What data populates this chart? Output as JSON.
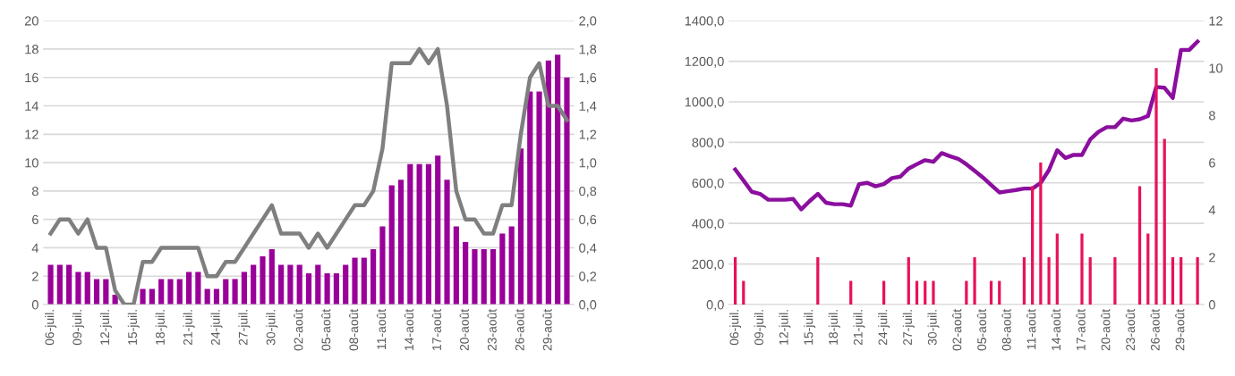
{
  "chart_data": [
    {
      "type": "bar",
      "categories": [
        "06-juil.",
        null,
        null,
        "09-juil.",
        null,
        null,
        "12-juil.",
        null,
        null,
        "15-juil.",
        null,
        null,
        "18-juil.",
        null,
        null,
        "21-juil.",
        null,
        null,
        "24-juil.",
        null,
        null,
        "27-juil.",
        null,
        null,
        "30-juil.",
        null,
        null,
        "02-août",
        null,
        null,
        "05-août",
        null,
        null,
        "08-août",
        null,
        null,
        "11-août",
        null,
        null,
        "14-août",
        null,
        null,
        "17-août",
        null,
        null,
        "20-août",
        null,
        null,
        "23-août",
        null,
        null,
        "26-août",
        null,
        null,
        "29-août",
        null,
        null
      ],
      "series": [
        {
          "color": "#990099",
          "values": [
            2.8,
            2.8,
            2.8,
            2.3,
            2.3,
            1.8,
            1.8,
            0.7,
            0,
            0,
            1.1,
            1.1,
            1.8,
            1.8,
            1.8,
            2.3,
            2.3,
            1.1,
            1.1,
            1.8,
            1.8,
            2.3,
            2.8,
            3.4,
            3.9,
            2.8,
            2.8,
            2.8,
            2.2,
            2.8,
            2.2,
            2.2,
            2.8,
            3.3,
            3.3,
            3.9,
            5.5,
            8.4,
            8.8,
            9.9,
            9.9,
            9.9,
            10.5,
            8.8,
            5.5,
            4.4,
            3.9,
            3.9,
            3.9,
            5.0,
            5.5,
            11.0,
            15.0,
            15.0,
            17.2,
            17.6,
            16.0
          ]
        },
        {
          "type": "line",
          "axis": "y2",
          "color": "#7f7f7f",
          "values": [
            0.5,
            0.6,
            0.6,
            0.5,
            0.6,
            0.4,
            0.4,
            0.1,
            0,
            0,
            0.3,
            0.3,
            0.4,
            0.4,
            0.4,
            0.4,
            0.4,
            0.2,
            0.2,
            0.3,
            0.3,
            0.4,
            0.5,
            0.6,
            0.7,
            0.5,
            0.5,
            0.5,
            0.4,
            0.5,
            0.4,
            0.5,
            0.6,
            0.7,
            0.7,
            0.8,
            1.1,
            1.7,
            1.7,
            1.7,
            1.8,
            1.7,
            1.8,
            1.4,
            0.8,
            0.6,
            0.6,
            0.5,
            0.5,
            0.7,
            0.7,
            1.2,
            1.6,
            1.7,
            1.4,
            1.4,
            1.3
          ]
        }
      ],
      "ylim": [
        0,
        20
      ],
      "yticks": [
        0,
        2,
        4,
        6,
        8,
        10,
        12,
        14,
        16,
        18,
        20
      ],
      "y2lim": [
        0,
        2
      ],
      "y2ticks": [
        {
          "value": 0,
          "label": "0,0"
        },
        {
          "value": 0.2,
          "label": "0,2"
        },
        {
          "value": 0.4,
          "label": "0,4"
        },
        {
          "value": 0.6,
          "label": "0,6"
        },
        {
          "value": 0.8,
          "label": "0,8"
        },
        {
          "value": 1.0,
          "label": "1,0"
        },
        {
          "value": 1.2,
          "label": "1,2"
        },
        {
          "value": 1.4,
          "label": "1,4"
        },
        {
          "value": 1.6,
          "label": "1,6"
        },
        {
          "value": 1.8,
          "label": "1,8"
        },
        {
          "value": 2.0,
          "label": "2,0"
        }
      ],
      "grid": "y"
    },
    {
      "type": "bar",
      "categories": [
        "06-juil.",
        null,
        null,
        "09-juil.",
        null,
        null,
        "12-juil.",
        null,
        null,
        "15-juil.",
        null,
        null,
        "18-juil.",
        null,
        null,
        "21-juil.",
        null,
        null,
        "24-juil.",
        null,
        null,
        "27-juil.",
        null,
        null,
        "30-juil.",
        null,
        null,
        "02-août",
        null,
        null,
        "05-août",
        null,
        null,
        "08-août",
        null,
        null,
        "11-août",
        null,
        null,
        "14-août",
        null,
        null,
        "17-août",
        null,
        null,
        "20-août",
        null,
        null,
        "23-août",
        null,
        null,
        "26-août",
        null,
        null,
        "29-août",
        null,
        null
      ],
      "series": [
        {
          "axis": "y2",
          "color": "#e8115b",
          "values": [
            2,
            1,
            0,
            0,
            0,
            0,
            0,
            0,
            0,
            0,
            2,
            0,
            0,
            0,
            1,
            0,
            0,
            0,
            1,
            0,
            0,
            2,
            1,
            1,
            1,
            0,
            0,
            0,
            1,
            2,
            0,
            1,
            1,
            0,
            0,
            2,
            5,
            6,
            2,
            3,
            0,
            0,
            3,
            2,
            0,
            0,
            2,
            0,
            0,
            5,
            3,
            10,
            7,
            2,
            2,
            0,
            2
          ]
        },
        {
          "type": "line",
          "color": "#8b0f9e",
          "values": [
            666,
            612,
            556,
            546,
            517,
            517,
            517,
            521,
            470,
            510,
            546,
            502,
            495,
            495,
            488,
            594,
            600,
            583,
            594,
            624,
            631,
            671,
            692,
            712,
            704,
            747,
            732,
            719,
            692,
            660,
            627,
            590,
            553,
            559,
            565,
            572,
            572,
            600,
            663,
            761,
            723,
            738,
            738,
            814,
            852,
            875,
            875,
            917,
            908,
            914,
            930,
            1073,
            1069,
            1019,
            1256,
            1256,
            1297
          ]
        }
      ],
      "ylim": [
        0,
        1400
      ],
      "yticks": [
        {
          "value": 0,
          "label": "0,0"
        },
        {
          "value": 200,
          "label": "200,0"
        },
        {
          "value": 400,
          "label": "400,0"
        },
        {
          "value": 600,
          "label": "600,0"
        },
        {
          "value": 800,
          "label": "800,0"
        },
        {
          "value": 1000,
          "label": "1000,0"
        },
        {
          "value": 1200,
          "label": "1200,0"
        },
        {
          "value": 1400,
          "label": "1400,0"
        }
      ],
      "y2lim": [
        0,
        12
      ],
      "y2ticks": [
        0,
        2,
        4,
        6,
        8,
        10,
        12
      ],
      "grid": "y"
    }
  ]
}
